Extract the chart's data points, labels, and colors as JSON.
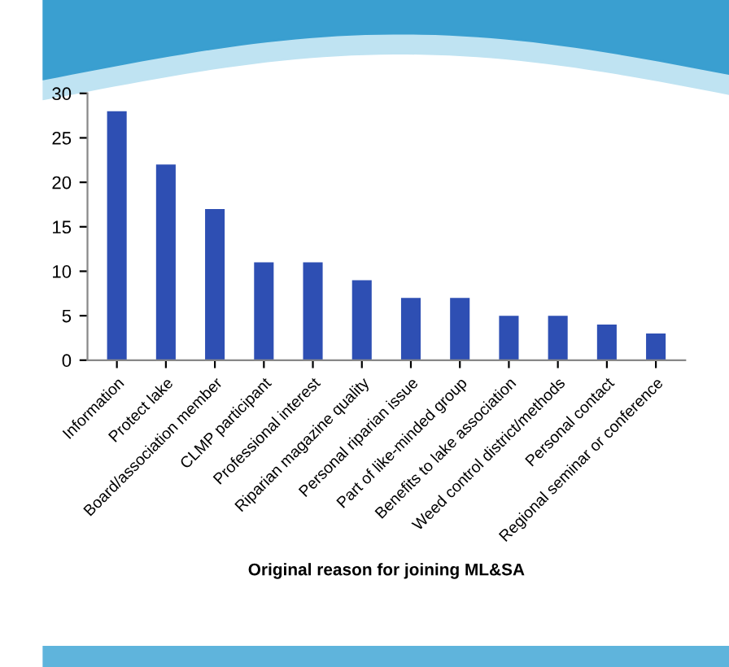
{
  "chart_data": {
    "type": "bar",
    "xlabel": "Original reason for joining ML&SA",
    "categories": [
      "Information",
      "Protect lake",
      "Board/association member",
      "CLMP participant",
      "Professional interest",
      "Riparian magazine quality",
      "Personal riparian issue",
      "Part of like-minded group",
      "Benefits to lake association",
      "Weed control district/methods",
      "Personal contact",
      "Regional seminar or conference"
    ],
    "values": [
      28,
      22,
      17,
      11,
      11,
      9,
      7,
      7,
      5,
      5,
      4,
      3
    ],
    "color": "#2e4fb3",
    "ylim": [
      0,
      30
    ],
    "yticks": [
      0,
      5,
      10,
      15,
      20,
      25,
      30
    ],
    "grid": false
  }
}
